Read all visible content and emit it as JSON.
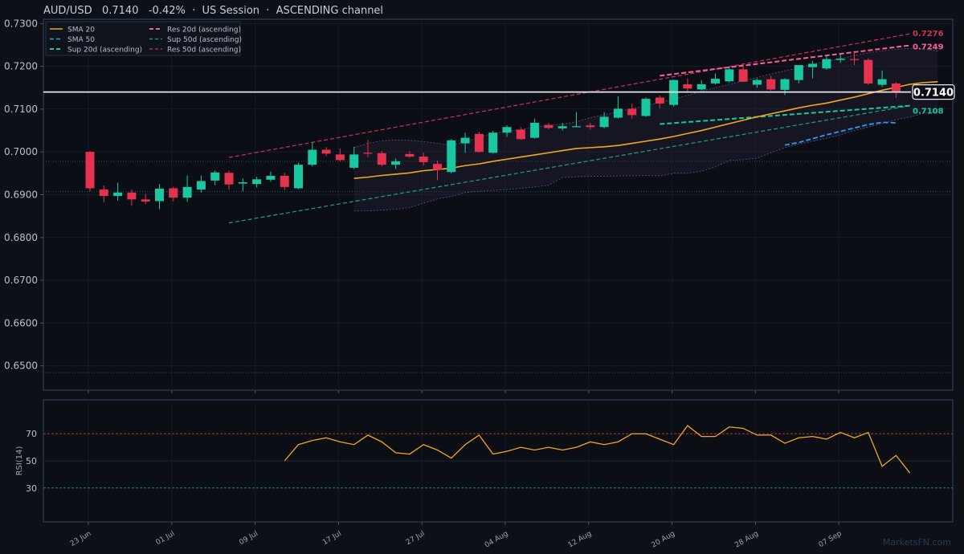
{
  "header": {
    "title": "AUD/USD   0.7140   -0.42%  ·  US Session  ·  ASCENDING channel"
  },
  "watermark": "MarketsFN.com",
  "colors": {
    "background": "#0d1017",
    "up": "#19c8a0",
    "down": "#e5334f",
    "sma20": "#f5a623",
    "sma50": "#2b9cf0",
    "sup20": "#19c8a0",
    "res20": "#ff5f97",
    "sup50": "#1fa27e",
    "res50": "#d0325a",
    "rsi": "#f5a623",
    "axis": "#2c4a63"
  },
  "chart_data": {
    "type": "candlestick",
    "symbol": "AUD/USD",
    "last_price": "0.7140",
    "change": "-0.42%",
    "session": "US Session",
    "channel": "ASCENDING channel",
    "x_ticks": [
      "23 Jun",
      "01 Jul",
      "09 Jul",
      "17 Jul",
      "27 Jul",
      "04 Aug",
      "12 Aug",
      "20 Aug",
      "28 Aug",
      "07 Sep"
    ],
    "x_tick_index": [
      0,
      6,
      12,
      18,
      24,
      30,
      36,
      42,
      48,
      54
    ],
    "y_ticks": [
      "0.7300",
      "0.7200",
      "0.7100",
      "0.7000",
      "0.6900",
      "0.6800",
      "0.6700",
      "0.6600",
      "0.6500"
    ],
    "y_range": [
      0.6443,
      0.731
    ],
    "candles": [
      {
        "o": 0.7,
        "h": 0.7002,
        "l": 0.6907,
        "c": 0.6915
      },
      {
        "o": 0.6912,
        "h": 0.6922,
        "l": 0.6882,
        "c": 0.6897
      },
      {
        "o": 0.6897,
        "h": 0.6928,
        "l": 0.6886,
        "c": 0.6905
      },
      {
        "o": 0.6905,
        "h": 0.6912,
        "l": 0.6874,
        "c": 0.6889
      },
      {
        "o": 0.6889,
        "h": 0.6902,
        "l": 0.6878,
        "c": 0.6884
      },
      {
        "o": 0.6885,
        "h": 0.6925,
        "l": 0.6866,
        "c": 0.6914
      },
      {
        "o": 0.6915,
        "h": 0.6918,
        "l": 0.6884,
        "c": 0.6893
      },
      {
        "o": 0.6893,
        "h": 0.6945,
        "l": 0.6883,
        "c": 0.6918
      },
      {
        "o": 0.6912,
        "h": 0.6945,
        "l": 0.6905,
        "c": 0.6932
      },
      {
        "o": 0.6933,
        "h": 0.6957,
        "l": 0.6922,
        "c": 0.6952
      },
      {
        "o": 0.6951,
        "h": 0.6956,
        "l": 0.6911,
        "c": 0.6924
      },
      {
        "o": 0.6926,
        "h": 0.6938,
        "l": 0.6908,
        "c": 0.6929
      },
      {
        "o": 0.6925,
        "h": 0.6942,
        "l": 0.6917,
        "c": 0.6936
      },
      {
        "o": 0.6935,
        "h": 0.6954,
        "l": 0.693,
        "c": 0.6944
      },
      {
        "o": 0.6944,
        "h": 0.6951,
        "l": 0.691,
        "c": 0.6918
      },
      {
        "o": 0.6915,
        "h": 0.6975,
        "l": 0.6913,
        "c": 0.697
      },
      {
        "o": 0.697,
        "h": 0.7022,
        "l": 0.6966,
        "c": 0.7005
      },
      {
        "o": 0.7005,
        "h": 0.7011,
        "l": 0.699,
        "c": 0.6996
      },
      {
        "o": 0.6994,
        "h": 0.7008,
        "l": 0.6977,
        "c": 0.6981
      },
      {
        "o": 0.6963,
        "h": 0.7012,
        "l": 0.696,
        "c": 0.6994
      },
      {
        "o": 0.6998,
        "h": 0.7028,
        "l": 0.6988,
        "c": 0.6996
      },
      {
        "o": 0.6997,
        "h": 0.7002,
        "l": 0.6966,
        "c": 0.697
      },
      {
        "o": 0.697,
        "h": 0.6985,
        "l": 0.696,
        "c": 0.6978
      },
      {
        "o": 0.6995,
        "h": 0.7002,
        "l": 0.6986,
        "c": 0.6989
      },
      {
        "o": 0.6989,
        "h": 0.6998,
        "l": 0.6968,
        "c": 0.6976
      },
      {
        "o": 0.6972,
        "h": 0.698,
        "l": 0.6934,
        "c": 0.6958
      },
      {
        "o": 0.6953,
        "h": 0.703,
        "l": 0.695,
        "c": 0.7027
      },
      {
        "o": 0.702,
        "h": 0.7045,
        "l": 0.6998,
        "c": 0.7033
      },
      {
        "o": 0.7042,
        "h": 0.7047,
        "l": 0.6998,
        "c": 0.7
      },
      {
        "o": 0.6998,
        "h": 0.7049,
        "l": 0.6996,
        "c": 0.7045
      },
      {
        "o": 0.7045,
        "h": 0.7062,
        "l": 0.7035,
        "c": 0.7058
      },
      {
        "o": 0.7052,
        "h": 0.7058,
        "l": 0.7028,
        "c": 0.703
      },
      {
        "o": 0.7033,
        "h": 0.7078,
        "l": 0.7031,
        "c": 0.7068
      },
      {
        "o": 0.7063,
        "h": 0.7068,
        "l": 0.7053,
        "c": 0.7056
      },
      {
        "o": 0.7055,
        "h": 0.7068,
        "l": 0.705,
        "c": 0.706
      },
      {
        "o": 0.706,
        "h": 0.7093,
        "l": 0.7058,
        "c": 0.706
      },
      {
        "o": 0.7062,
        "h": 0.7068,
        "l": 0.7052,
        "c": 0.7058
      },
      {
        "o": 0.7058,
        "h": 0.7093,
        "l": 0.7055,
        "c": 0.7082
      },
      {
        "o": 0.708,
        "h": 0.713,
        "l": 0.7078,
        "c": 0.7101
      },
      {
        "o": 0.7101,
        "h": 0.7112,
        "l": 0.7078,
        "c": 0.7086
      },
      {
        "o": 0.7084,
        "h": 0.7127,
        "l": 0.7082,
        "c": 0.7124
      },
      {
        "o": 0.7127,
        "h": 0.7132,
        "l": 0.7102,
        "c": 0.7113
      },
      {
        "o": 0.711,
        "h": 0.7169,
        "l": 0.7106,
        "c": 0.7168
      },
      {
        "o": 0.7158,
        "h": 0.7172,
        "l": 0.714,
        "c": 0.7148
      },
      {
        "o": 0.7146,
        "h": 0.7168,
        "l": 0.7144,
        "c": 0.7158
      },
      {
        "o": 0.716,
        "h": 0.7183,
        "l": 0.7158,
        "c": 0.7171
      },
      {
        "o": 0.7165,
        "h": 0.7197,
        "l": 0.7162,
        "c": 0.7193
      },
      {
        "o": 0.7193,
        "h": 0.72,
        "l": 0.7163,
        "c": 0.7164
      },
      {
        "o": 0.7157,
        "h": 0.7172,
        "l": 0.715,
        "c": 0.7168
      },
      {
        "o": 0.717,
        "h": 0.7178,
        "l": 0.7143,
        "c": 0.7146
      },
      {
        "o": 0.7145,
        "h": 0.7172,
        "l": 0.7133,
        "c": 0.717
      },
      {
        "o": 0.7168,
        "h": 0.7202,
        "l": 0.716,
        "c": 0.7203
      },
      {
        "o": 0.7198,
        "h": 0.7213,
        "l": 0.7172,
        "c": 0.7206
      },
      {
        "o": 0.7195,
        "h": 0.7223,
        "l": 0.7192,
        "c": 0.7217
      },
      {
        "o": 0.7215,
        "h": 0.723,
        "l": 0.7208,
        "c": 0.7218
      },
      {
        "o": 0.7217,
        "h": 0.7233,
        "l": 0.7203,
        "c": 0.7215
      },
      {
        "o": 0.7215,
        "h": 0.7219,
        "l": 0.7157,
        "c": 0.716
      },
      {
        "o": 0.7157,
        "h": 0.719,
        "l": 0.7152,
        "c": 0.717
      },
      {
        "o": 0.716,
        "h": 0.7163,
        "l": 0.7126,
        "c": 0.714
      }
    ],
    "sma20": {
      "start": 19,
      "values": [
        0.6938,
        0.6941,
        0.6945,
        0.6948,
        0.6951,
        0.6956,
        0.6959,
        0.6962,
        0.6968,
        0.6972,
        0.6978,
        0.6983,
        0.6988,
        0.6993,
        0.6998,
        0.7003,
        0.7008,
        0.701,
        0.7012,
        0.7015,
        0.702,
        0.7025,
        0.703,
        0.7036,
        0.7043,
        0.705,
        0.7058,
        0.7066,
        0.7074,
        0.7082,
        0.7089,
        0.7096,
        0.7103,
        0.7109,
        0.7114,
        0.7121,
        0.7128,
        0.7136,
        0.7144,
        0.7151,
        0.7158,
        0.7162,
        0.7164
      ]
    },
    "sma50": {
      "start": 50,
      "values": [
        0.7016,
        0.7022,
        0.7031,
        0.704,
        0.7048,
        0.7056,
        0.7064,
        0.7069,
        0.7068
      ]
    },
    "sup20": {
      "x": [
        41,
        59
      ],
      "y": [
        0.7065,
        0.7108
      ]
    },
    "res20": {
      "x": [
        41,
        59
      ],
      "y": [
        0.7178,
        0.7249
      ]
    },
    "sup50": {
      "x": [
        10,
        59
      ],
      "y": [
        0.6834,
        0.7108
      ]
    },
    "res50": {
      "x": [
        10,
        59
      ],
      "y": [
        0.6987,
        0.7276
      ]
    },
    "bollinger": {
      "start": 19,
      "upper": [
        0.701,
        0.702,
        0.7026,
        0.7028,
        0.7027,
        0.7024,
        0.702,
        0.7016,
        0.7022,
        0.7035,
        0.7043,
        0.7048,
        0.7052,
        0.7058,
        0.7062,
        0.7065,
        0.707,
        0.708,
        0.7087,
        0.7094,
        0.7101,
        0.7108,
        0.7116,
        0.7124,
        0.7132,
        0.7142,
        0.715,
        0.7158,
        0.7166,
        0.7174,
        0.7182,
        0.719,
        0.7196,
        0.7205,
        0.7212,
        0.7218,
        0.7225,
        0.7232,
        0.7236,
        0.724,
        0.7242,
        0.724,
        0.7236
      ],
      "lower": [
        0.6862,
        0.6862,
        0.6864,
        0.6866,
        0.687,
        0.688,
        0.689,
        0.6896,
        0.6905,
        0.6908,
        0.691,
        0.6912,
        0.6915,
        0.6918,
        0.6922,
        0.694,
        0.6942,
        0.6943,
        0.6943,
        0.6944,
        0.6944,
        0.6945,
        0.6944,
        0.695,
        0.695,
        0.6955,
        0.6965,
        0.698,
        0.6982,
        0.6985,
        0.6998,
        0.701,
        0.7018,
        0.7025,
        0.7032,
        0.704,
        0.705,
        0.7058,
        0.7066,
        0.7075,
        0.7082,
        0.709,
        0.7093
      ]
    },
    "h_levels": [
      0.6978,
      0.6907,
      0.6484
    ],
    "current_line": 0.714,
    "labels": {
      "current": "0.7140",
      "res50": "0.7276",
      "res20": "0.7249",
      "sup": "0.7108"
    },
    "legend": {
      "left": [
        "SMA 20",
        "SMA 50",
        "Sup 20d (ascending)"
      ],
      "right": [
        "Res 20d (ascending)",
        "Sup 50d (ascending)",
        "Res 50d (ascending)"
      ]
    },
    "rsi": {
      "label": "RSI(14)",
      "ticks": [
        "70",
        "50",
        "30"
      ],
      "levels": [
        70,
        50,
        30
      ],
      "range": [
        5,
        95
      ],
      "start": 14,
      "values": [
        50,
        62,
        65,
        67,
        64,
        62,
        69,
        64,
        56,
        55,
        62,
        58,
        52,
        62,
        69,
        55,
        57,
        60,
        58,
        60,
        58,
        60,
        64,
        62,
        64,
        70,
        70,
        66,
        62,
        76,
        68,
        68,
        75,
        74,
        69,
        69,
        63,
        67,
        68,
        66,
        71,
        67,
        71,
        46,
        54,
        41
      ]
    }
  }
}
